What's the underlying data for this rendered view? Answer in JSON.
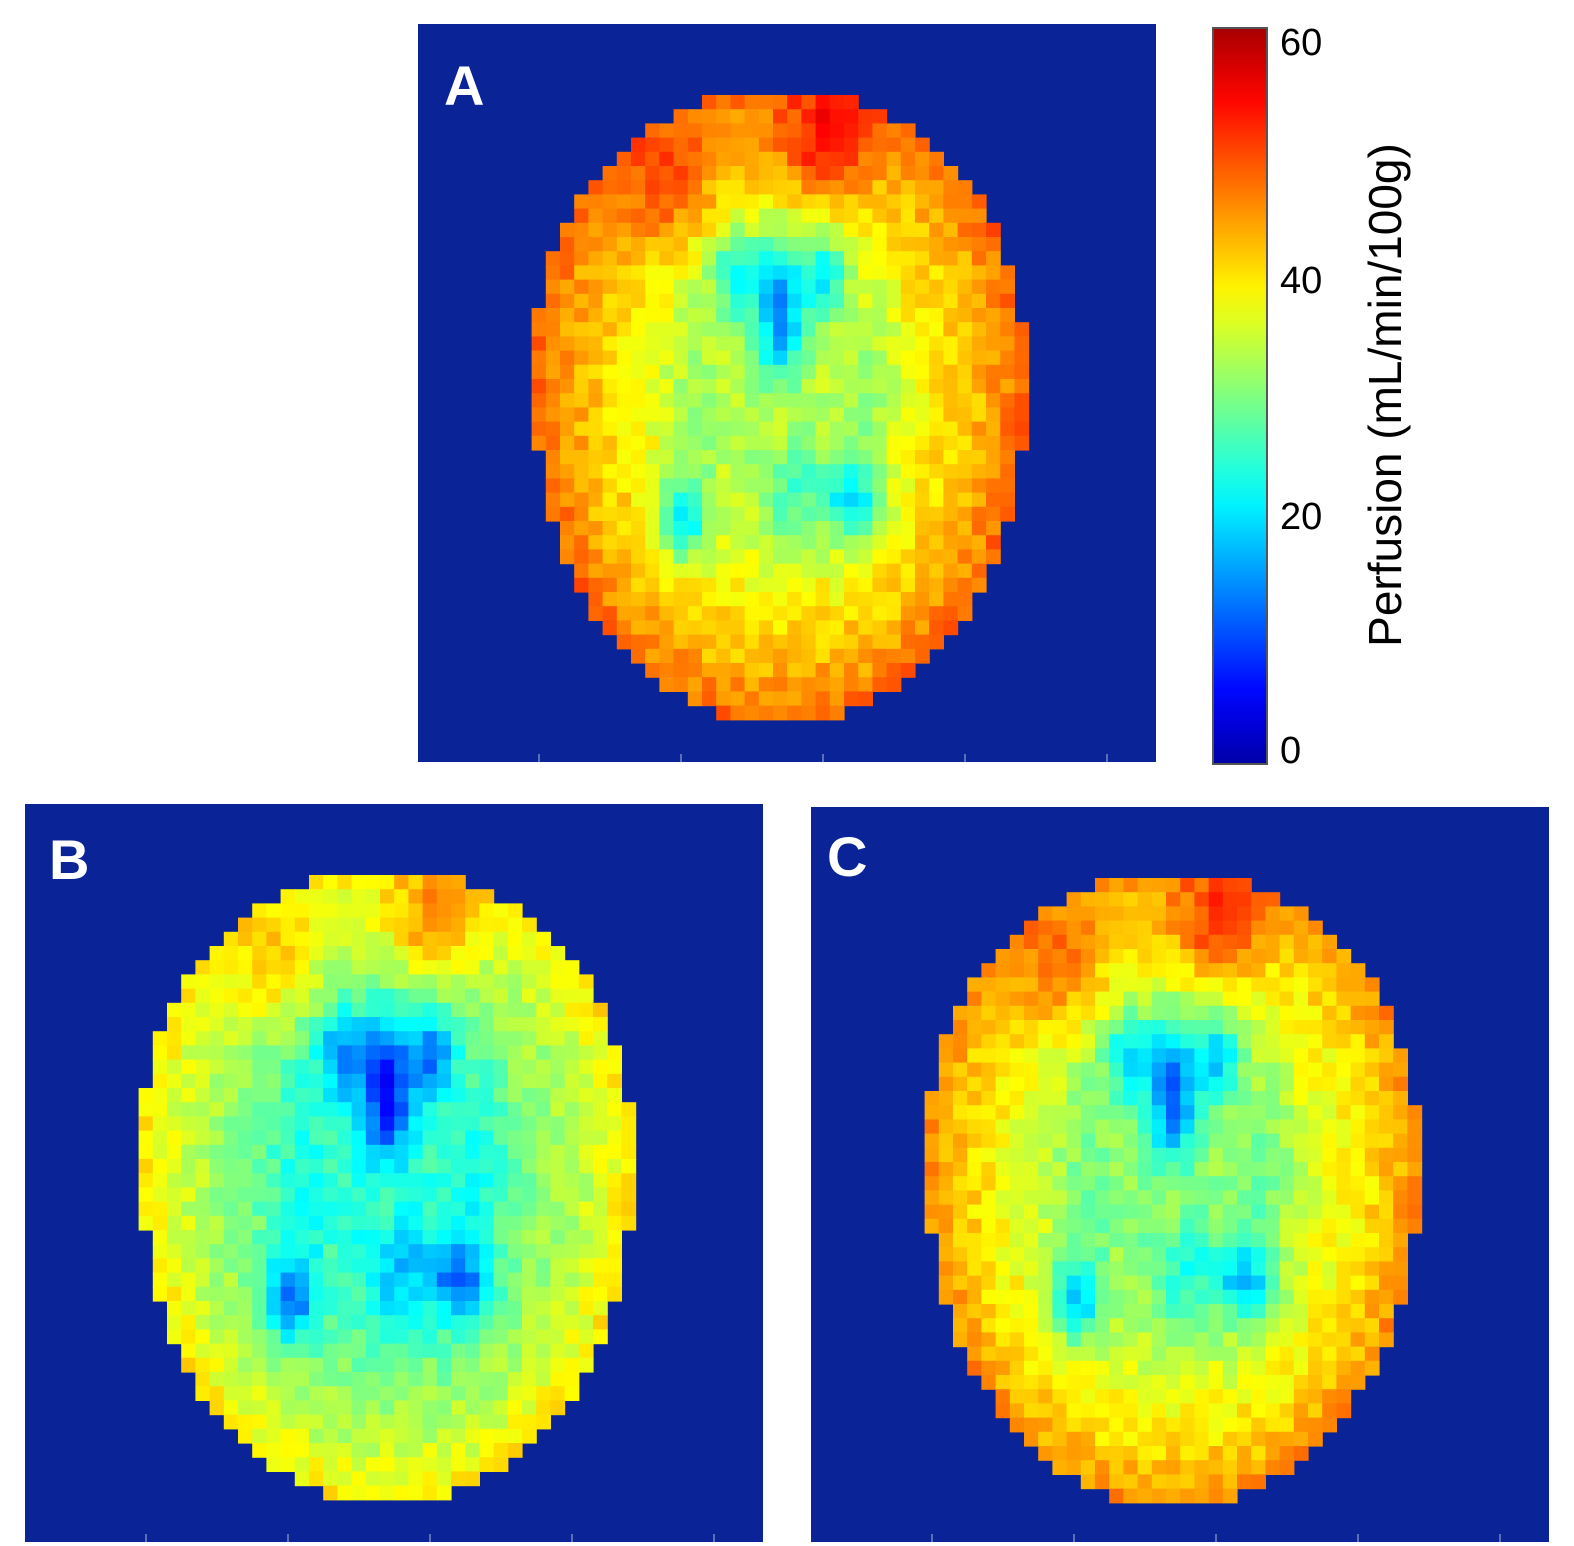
{
  "figure": {
    "panels": [
      {
        "id": "a",
        "label": "A",
        "variant": "high"
      },
      {
        "id": "b",
        "label": "B",
        "variant": "low"
      },
      {
        "id": "c",
        "label": "C",
        "variant": "mid"
      }
    ],
    "colorbar": {
      "title": "Perfusion (mL/min/100g)",
      "ticks": [
        "60",
        "40",
        "20",
        "0"
      ],
      "range": [
        0,
        60
      ],
      "colormap": "jet"
    },
    "colors": {
      "background": "#0a2396",
      "label": "#ffffff"
    }
  }
}
